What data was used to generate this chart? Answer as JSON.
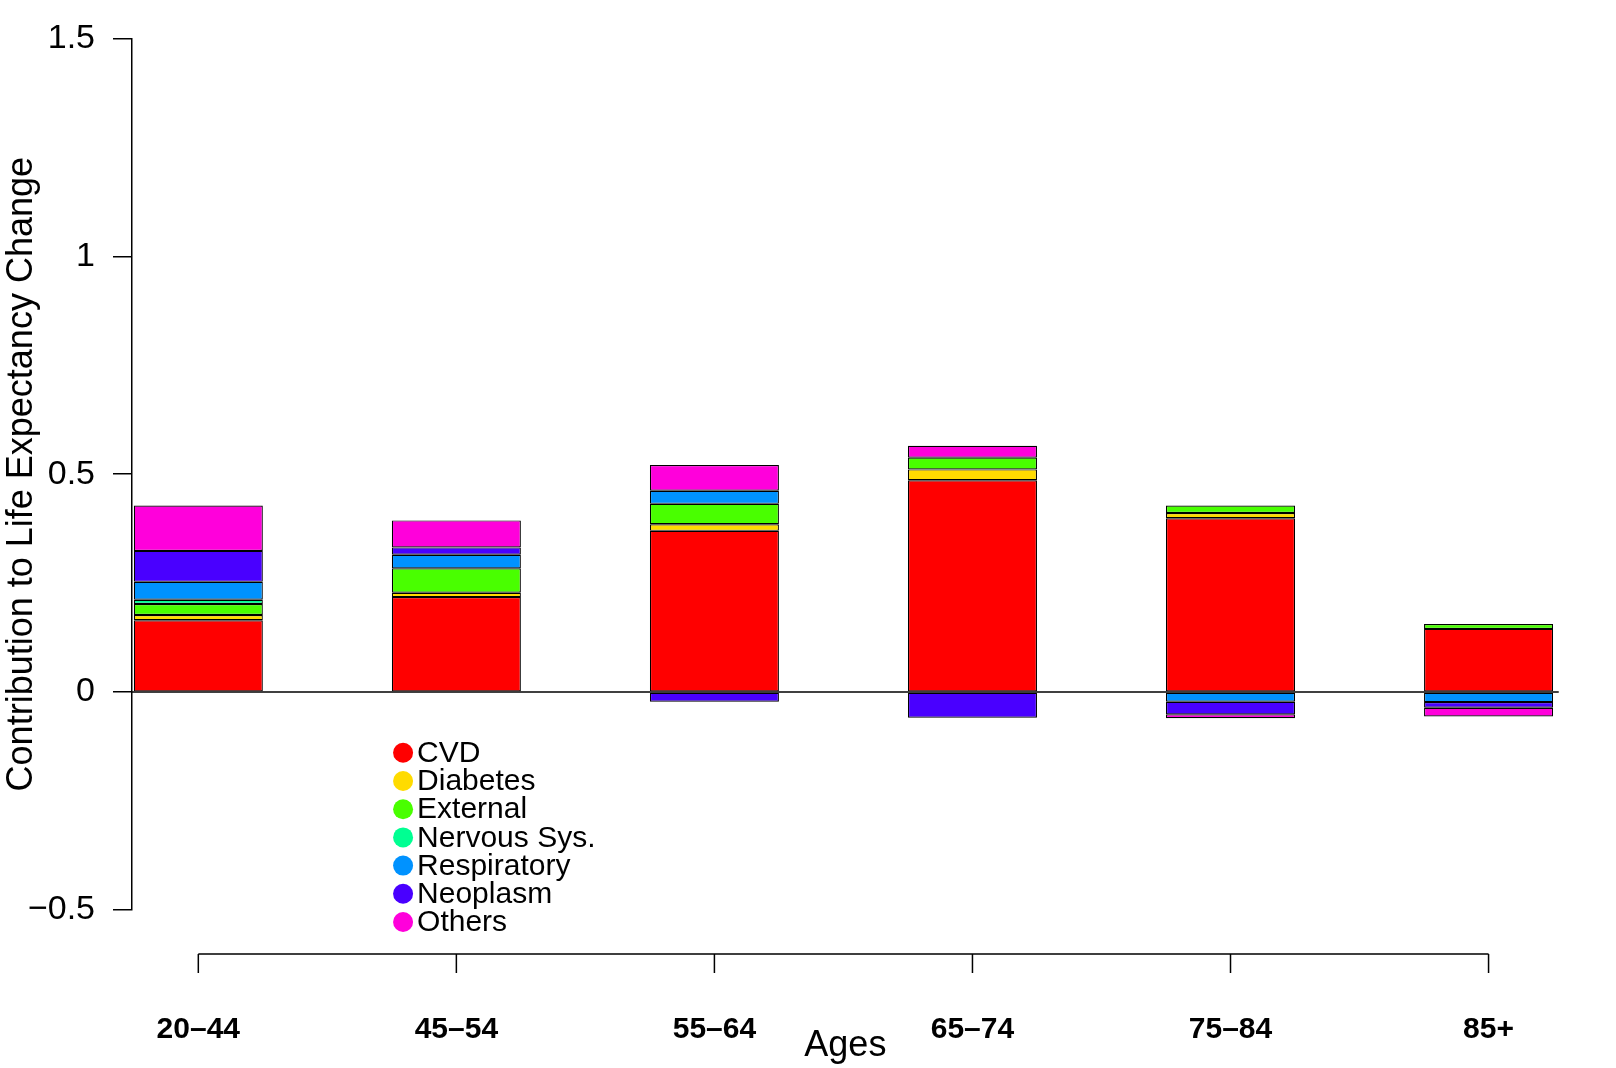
{
  "chart_data": {
    "type": "bar",
    "stacked": true,
    "xlabel": "Ages",
    "ylabel": "Contribution to Life Expectancy Change",
    "categories": [
      "20–44",
      "45–54",
      "55–64",
      "65–74",
      "75–84",
      "85+"
    ],
    "series": [
      {
        "name": "CVD",
        "color": "#ff0000",
        "values": [
          0.165,
          0.218,
          0.37,
          0.486,
          0.399,
          0.145
        ]
      },
      {
        "name": "Diabetes",
        "color": "#ffdb00",
        "values": [
          0.012,
          0.01,
          0.015,
          0.025,
          0.012,
          null
        ]
      },
      {
        "name": "External",
        "color": "#49ff00",
        "values": [
          0.025,
          0.056,
          0.047,
          0.027,
          0.017,
          0.011
        ]
      },
      {
        "name": "Nervous Sys.",
        "color": "#00ff92",
        "values": [
          0.01,
          null,
          null,
          null,
          null,
          null
        ]
      },
      {
        "name": "Respiratory",
        "color": "#0092ff",
        "values": [
          0.041,
          0.031,
          0.03,
          null,
          -0.022,
          -0.023
        ]
      },
      {
        "name": "Neoplasm",
        "color": "#4900ff",
        "values": [
          0.071,
          0.017,
          -0.022,
          -0.059,
          -0.029,
          -0.013
        ]
      },
      {
        "name": "Others",
        "color": "#ff00db",
        "values": [
          0.104,
          0.062,
          0.059,
          0.027,
          -0.009,
          -0.02
        ]
      }
    ],
    "ylim": [
      -0.5,
      1.5
    ],
    "yticks": [
      {
        "value": -0.5,
        "label": "−0.5"
      },
      0,
      0.5,
      1,
      1.5
    ],
    "ref_lines": [
      {
        "axis": "y",
        "value": 0
      }
    ],
    "legend": "bottom left"
  }
}
